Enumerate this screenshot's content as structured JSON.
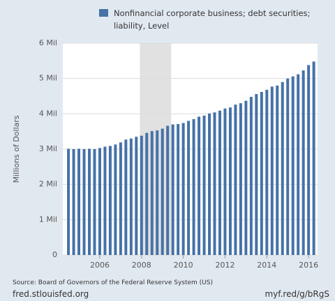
{
  "chart_data": {
    "type": "bar",
    "y_label": "Millions of Dollars",
    "source": "Source: Board of Governors of the Federal Reserve System (US)",
    "site": "fred.stlouisfed.org",
    "short_link": "myf.red/g/bRgS",
    "x": [
      2004.5,
      2004.75,
      2005,
      2005.25,
      2005.5,
      2005.75,
      2006,
      2006.25,
      2006.5,
      2006.75,
      2007,
      2007.25,
      2007.5,
      2007.75,
      2008,
      2008.25,
      2008.5,
      2008.75,
      2009,
      2009.25,
      2009.5,
      2009.75,
      2010,
      2010.25,
      2010.5,
      2010.75,
      2011,
      2011.25,
      2011.5,
      2011.75,
      2012,
      2012.25,
      2012.5,
      2012.75,
      2013,
      2013.25,
      2013.5,
      2013.75,
      2014,
      2014.25,
      2014.5,
      2014.75,
      2015,
      2015.25,
      2015.5,
      2015.75,
      2016,
      2016.25
    ],
    "series": [
      {
        "name": "Nonfinancial corporate business; debt securities; liability, Level",
        "color": "#4572a7",
        "values": [
          3010000,
          3000000,
          3010000,
          3000000,
          3010000,
          3000000,
          3030000,
          3070000,
          3090000,
          3130000,
          3190000,
          3270000,
          3300000,
          3350000,
          3380000,
          3460000,
          3510000,
          3530000,
          3580000,
          3660000,
          3700000,
          3710000,
          3740000,
          3800000,
          3850000,
          3920000,
          3950000,
          4010000,
          4040000,
          4090000,
          4150000,
          4180000,
          4260000,
          4300000,
          4370000,
          4480000,
          4560000,
          4620000,
          4680000,
          4770000,
          4800000,
          4900000,
          5000000,
          5060000,
          5120000,
          5230000,
          5380000,
          5480000
        ]
      }
    ],
    "xlim": [
      2004.23,
      2016.43
    ],
    "xticks": [
      2006,
      2008,
      2010,
      2012,
      2014,
      2016
    ],
    "ylim": [
      0,
      6000000
    ],
    "yticks": [
      0,
      {
        "value": 1000000,
        "label": "1 Mil"
      },
      {
        "value": 2000000,
        "label": "2 Mil"
      },
      {
        "value": 3000000,
        "label": "3 Mil"
      },
      {
        "value": 4000000,
        "label": "4 Mil"
      },
      {
        "value": 5000000,
        "label": "5 Mil"
      },
      {
        "value": 6000000,
        "label": "6 Mil"
      }
    ],
    "recession": [
      2007.92,
      2009.42
    ],
    "grid": true
  }
}
